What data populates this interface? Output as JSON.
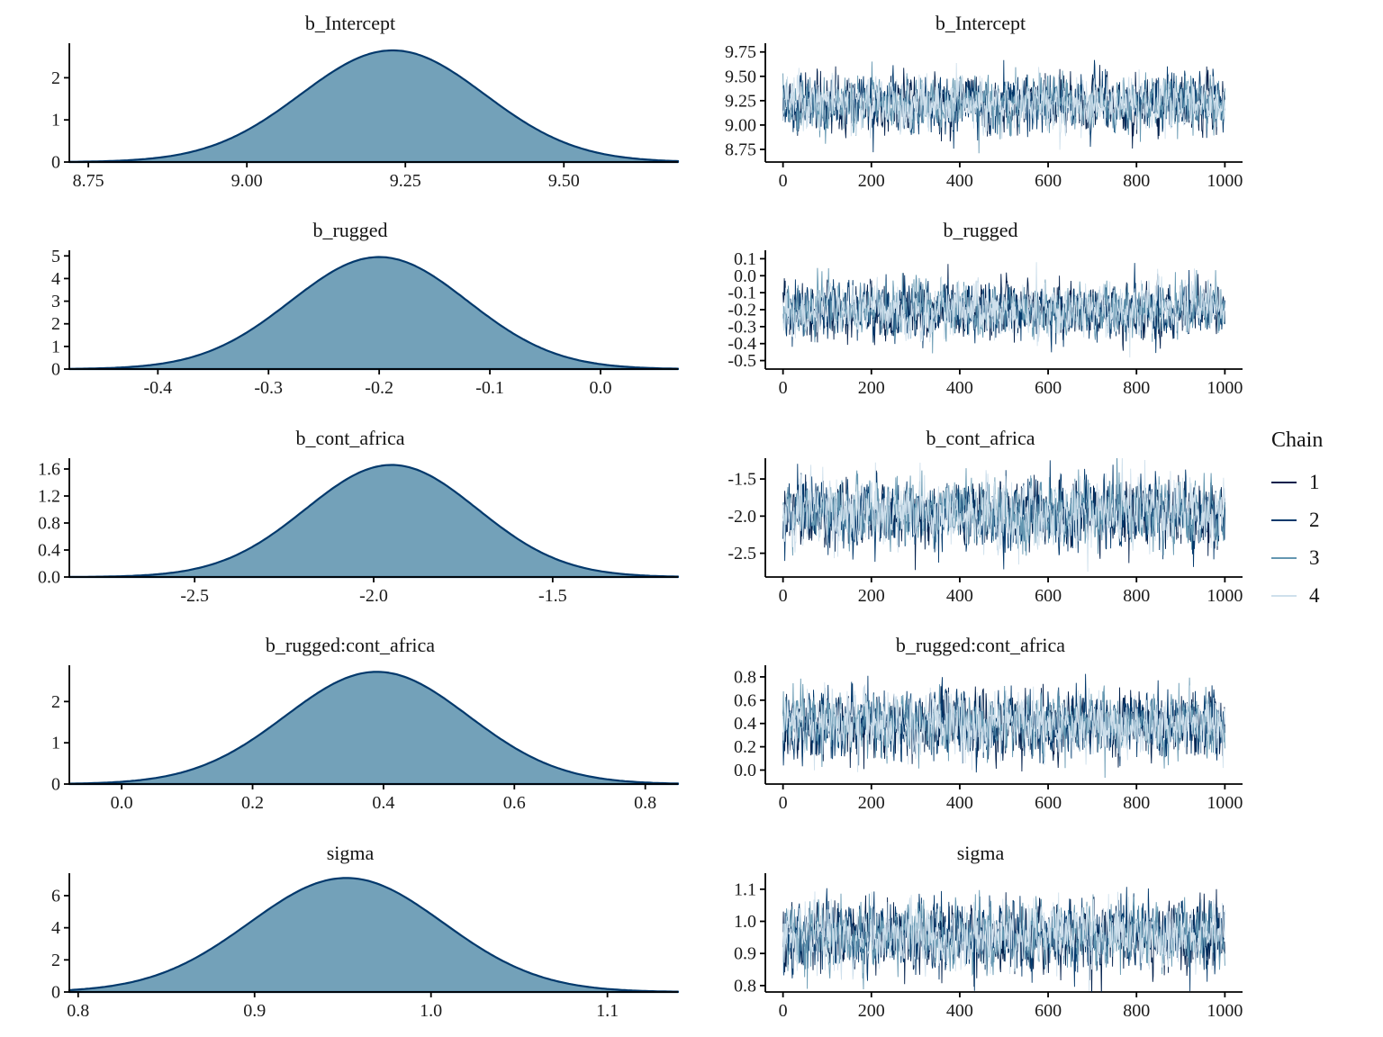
{
  "legend": {
    "title": "Chain",
    "items": [
      {
        "label": "1",
        "color": "#011f4b"
      },
      {
        "label": "2",
        "color": "#03396c"
      },
      {
        "label": "3",
        "color": "#6497b1"
      },
      {
        "label": "4",
        "color": "#cfe0ec"
      }
    ]
  },
  "style": {
    "density_fill": "#6497b1",
    "density_stroke": "#03396c",
    "axis_color": "#000000",
    "text_color": "#1a1a1a",
    "background": "#ffffff"
  },
  "chart_data": [
    {
      "type": "density",
      "title": "b_Intercept",
      "xlabel": "",
      "ylabel": "",
      "xlim": [
        8.72,
        9.68
      ],
      "x_ticks": [
        8.75,
        9.0,
        9.25,
        9.5
      ],
      "x_tick_labels": [
        "8.75",
        "9.00",
        "9.25",
        "9.50"
      ],
      "ylim": [
        0,
        2.82
      ],
      "y_ticks": [
        0,
        1,
        2
      ],
      "y_tick_labels": [
        "0",
        "1",
        "2"
      ],
      "mean": 9.23,
      "sd": 0.145,
      "peak_density": 2.65
    },
    {
      "type": "trace",
      "title": "b_Intercept",
      "xlim": [
        -40,
        1040
      ],
      "x_ticks": [
        0,
        200,
        400,
        600,
        800,
        1000
      ],
      "x_tick_labels": [
        "0",
        "200",
        "400",
        "600",
        "800",
        "1000"
      ],
      "ylim": [
        8.62,
        9.84
      ],
      "y_ticks": [
        8.75,
        9.0,
        9.25,
        9.5,
        9.75
      ],
      "y_tick_labels": [
        "8.75",
        "9.00",
        "9.25",
        "9.50",
        "9.75"
      ],
      "mean": 9.22,
      "sd": 0.135,
      "n_iterations": 1000,
      "n_chains": 4
    },
    {
      "type": "density",
      "title": "b_rugged",
      "xlabel": "",
      "ylabel": "",
      "xlim": [
        -0.48,
        0.07
      ],
      "x_ticks": [
        -0.4,
        -0.3,
        -0.2,
        -0.1,
        0.0
      ],
      "x_tick_labels": [
        "-0.4",
        "-0.3",
        "-0.2",
        "-0.1",
        "0.0"
      ],
      "ylim": [
        0,
        5.25
      ],
      "y_ticks": [
        0,
        1,
        2,
        3,
        4,
        5
      ],
      "y_tick_labels": [
        "0",
        "1",
        "2",
        "3",
        "4",
        "5"
      ],
      "mean": -0.2,
      "sd": 0.08,
      "peak_density": 4.95
    },
    {
      "type": "trace",
      "title": "b_rugged",
      "xlim": [
        -40,
        1040
      ],
      "x_ticks": [
        0,
        200,
        400,
        600,
        800,
        1000
      ],
      "x_tick_labels": [
        "0",
        "200",
        "400",
        "600",
        "800",
        "1000"
      ],
      "ylim": [
        -0.55,
        0.15
      ],
      "y_ticks": [
        0.1,
        0.0,
        -0.1,
        -0.2,
        -0.3,
        -0.4,
        -0.5
      ],
      "y_tick_labels": [
        "0.1",
        "0.0",
        "-0.1",
        "-0.2",
        "-0.3",
        "-0.4",
        "-0.5"
      ],
      "mean": -0.2,
      "sd": 0.08,
      "n_iterations": 1000,
      "n_chains": 4
    },
    {
      "type": "density",
      "title": "b_cont_africa",
      "xlabel": "",
      "ylabel": "",
      "xlim": [
        -2.85,
        -1.15
      ],
      "x_ticks": [
        -2.5,
        -2.0,
        -1.5
      ],
      "x_tick_labels": [
        "-2.5",
        "-2.0",
        "-1.5"
      ],
      "ylim": [
        0,
        1.76
      ],
      "y_ticks": [
        0.0,
        0.4,
        0.8,
        1.2,
        1.6
      ],
      "y_tick_labels": [
        "0.0",
        "0.4",
        "0.8",
        "1.2",
        "1.6"
      ],
      "mean": -1.95,
      "sd": 0.24,
      "peak_density": 1.66
    },
    {
      "type": "trace",
      "title": "b_cont_africa",
      "xlim": [
        -40,
        1040
      ],
      "x_ticks": [
        0,
        200,
        400,
        600,
        800,
        1000
      ],
      "x_tick_labels": [
        "0",
        "200",
        "400",
        "600",
        "800",
        "1000"
      ],
      "ylim": [
        -2.82,
        -1.22
      ],
      "y_ticks": [
        -1.5,
        -2.0,
        -2.5
      ],
      "y_tick_labels": [
        "-1.5",
        "-2.0",
        "-2.5"
      ],
      "mean": -1.96,
      "sd": 0.23,
      "n_iterations": 1000,
      "n_chains": 4
    },
    {
      "type": "density",
      "title": "b_rugged:cont_africa",
      "xlabel": "",
      "ylabel": "",
      "xlim": [
        -0.08,
        0.85
      ],
      "x_ticks": [
        0.0,
        0.2,
        0.4,
        0.6,
        0.8
      ],
      "x_tick_labels": [
        "0.0",
        "0.2",
        "0.4",
        "0.6",
        "0.8"
      ],
      "ylim": [
        0,
        2.88
      ],
      "y_ticks": [
        0,
        1,
        2
      ],
      "y_tick_labels": [
        "0",
        "1",
        "2"
      ],
      "mean": 0.39,
      "sd": 0.14,
      "peak_density": 2.72
    },
    {
      "type": "trace",
      "title": "b_rugged:cont_africa",
      "xlim": [
        -40,
        1040
      ],
      "x_ticks": [
        0,
        200,
        400,
        600,
        800,
        1000
      ],
      "x_tick_labels": [
        "0",
        "200",
        "400",
        "600",
        "800",
        "1000"
      ],
      "ylim": [
        -0.12,
        0.9
      ],
      "y_ticks": [
        0.8,
        0.6,
        0.4,
        0.2,
        0.0
      ],
      "y_tick_labels": [
        "0.8",
        "0.6",
        "0.4",
        "0.2",
        "0.0"
      ],
      "mean": 0.39,
      "sd": 0.135,
      "n_iterations": 1000,
      "n_chains": 4
    },
    {
      "type": "density",
      "title": "sigma",
      "xlabel": "",
      "ylabel": "",
      "xlim": [
        0.795,
        1.14
      ],
      "x_ticks": [
        0.8,
        0.9,
        1.0,
        1.1
      ],
      "x_tick_labels": [
        "0.8",
        "0.9",
        "1.0",
        "1.1"
      ],
      "ylim": [
        0,
        7.4
      ],
      "y_ticks": [
        0,
        2,
        4,
        6
      ],
      "y_tick_labels": [
        "0",
        "2",
        "4",
        "6"
      ],
      "mean": 0.952,
      "sd": 0.055,
      "peak_density": 7.1
    },
    {
      "type": "trace",
      "title": "sigma",
      "xlim": [
        -40,
        1040
      ],
      "x_ticks": [
        0,
        200,
        400,
        600,
        800,
        1000
      ],
      "x_tick_labels": [
        "0",
        "200",
        "400",
        "600",
        "800",
        "1000"
      ],
      "ylim": [
        0.78,
        1.15
      ],
      "y_ticks": [
        1.1,
        1.0,
        0.9,
        0.8
      ],
      "y_tick_labels": [
        "1.1",
        "1.0",
        "0.9",
        "0.8"
      ],
      "mean": 0.953,
      "sd": 0.052,
      "n_iterations": 1000,
      "n_chains": 4
    }
  ]
}
